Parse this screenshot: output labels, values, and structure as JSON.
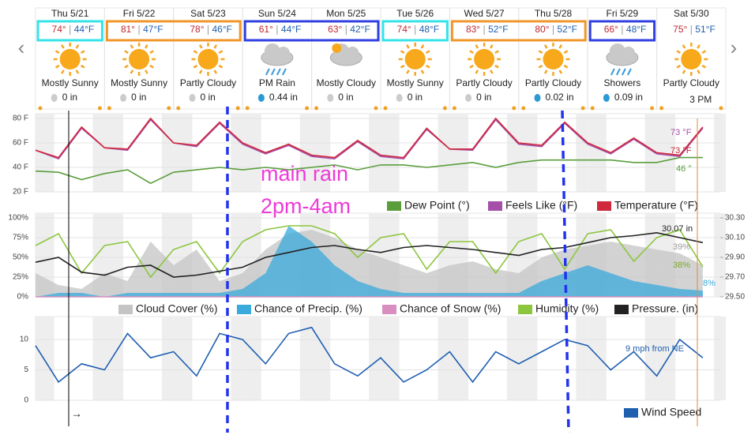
{
  "days": [
    {
      "date": "Thu 5/21",
      "hi": "74°",
      "lo": "44°F",
      "condition": "Mostly Sunny",
      "precip": "0 in",
      "box": "#33e3ea"
    },
    {
      "date": "Fri 5/22",
      "hi": "81°",
      "lo": "47°F",
      "condition": "Mostly Sunny",
      "precip": "0 in",
      "box": "#f0962a"
    },
    {
      "date": "Sat 5/23",
      "hi": "78°",
      "lo": "46°F",
      "condition": "Partly Cloudy",
      "precip": "0 in",
      "box": "#f0962a"
    },
    {
      "date": "Sun 5/24",
      "hi": "61°",
      "lo": "44°F",
      "condition": "PM Rain",
      "precip": "0.44 in",
      "box": "#2f3fe0"
    },
    {
      "date": "Mon 5/25",
      "hi": "63°",
      "lo": "42°F",
      "condition": "Mostly Cloudy",
      "precip": "0 in",
      "box": "#2f3fe0"
    },
    {
      "date": "Tue 5/26",
      "hi": "74°",
      "lo": "48°F",
      "condition": "Mostly Sunny",
      "precip": "0 in",
      "box": "#33e3ea"
    },
    {
      "date": "Wed 5/27",
      "hi": "83°",
      "lo": "52°F",
      "condition": "Partly Cloudy",
      "precip": "0 in",
      "box": "#f0962a"
    },
    {
      "date": "Thu 5/28",
      "hi": "80°",
      "lo": "52°F",
      "condition": "Partly Cloudy",
      "precip": "0.02 in",
      "box": "#f0962a"
    },
    {
      "date": "Fri 5/29",
      "hi": "66°",
      "lo": "48°F",
      "condition": "Showers",
      "precip": "0.09 in",
      "box": "#2f3fe0"
    },
    {
      "date": "Sat 5/30",
      "hi": "75°",
      "lo": "51°F",
      "condition": "Partly Cloudy"
    }
  ],
  "current_time": "3 PM",
  "note": [
    "main rain",
    "2pm-4am"
  ],
  "arrow": "→",
  "chart_data": [
    {
      "type": "line",
      "ylim": [
        20,
        80
      ],
      "yticks": [
        {
          "value": 20,
          "label": "20 F"
        },
        {
          "value": 40,
          "label": "40 F"
        },
        {
          "value": 60,
          "label": "60 F"
        },
        {
          "value": 80,
          "label": "80 F"
        }
      ],
      "categories": [
        null,
        null,
        null,
        null,
        null,
        null,
        null,
        null,
        null,
        null,
        null,
        null,
        null,
        null,
        null,
        null,
        null,
        null,
        null,
        null,
        null,
        null,
        null,
        null,
        null,
        null,
        null,
        null,
        null,
        null
      ],
      "series": [
        {
          "name": "Dew Point (°)",
          "color": "#5a9e3c",
          "values": [
            37,
            36,
            30,
            35,
            38,
            27,
            36,
            38,
            40,
            38,
            40,
            38,
            40,
            42,
            38,
            42,
            42,
            40,
            42,
            44,
            40,
            44,
            46,
            46,
            46,
            46,
            44,
            44,
            48,
            48
          ]
        },
        {
          "name": "Feels Like (°F)",
          "color": "#a54fa8",
          "values": [
            54,
            47,
            72,
            56,
            54,
            79,
            60,
            57,
            76,
            59,
            51,
            58,
            49,
            47,
            61,
            49,
            47,
            71,
            55,
            54,
            79,
            59,
            57,
            76,
            59,
            51,
            63,
            51,
            49,
            72
          ]
        },
        {
          "name": "Temperature (°F)",
          "color": "#d0283c",
          "values": [
            54,
            48,
            73,
            56,
            55,
            80,
            60,
            58,
            77,
            60,
            52,
            59,
            50,
            48,
            62,
            50,
            48,
            72,
            55,
            55,
            80,
            60,
            58,
            77,
            60,
            52,
            64,
            52,
            50,
            73
          ]
        }
      ],
      "annotations": [
        "73 °F",
        "73 °F",
        "46 °"
      ]
    },
    {
      "type": "line",
      "ylim": [
        0,
        100
      ],
      "yticks": [
        {
          "value": 0,
          "label": "0%"
        },
        {
          "value": 25,
          "label": "25%"
        },
        {
          "value": 50,
          "label": "50%"
        },
        {
          "value": 75,
          "label": "75%"
        },
        {
          "value": 100,
          "label": "100%"
        }
      ],
      "y2lim": [
        29.5,
        30.3
      ],
      "y2ticks": [
        {
          "value": 29.5,
          "label": "29.50"
        },
        {
          "value": 29.7,
          "label": "29.70"
        },
        {
          "value": 29.9,
          "label": "29.90"
        },
        {
          "value": 30.1,
          "label": "30.10"
        },
        {
          "value": 30.3,
          "label": "30.30"
        }
      ],
      "categories": [
        null,
        null,
        null,
        null,
        null,
        null,
        null,
        null,
        null,
        null,
        null,
        null,
        null,
        null,
        null,
        null,
        null,
        null,
        null,
        null,
        null,
        null,
        null,
        null,
        null,
        null,
        null,
        null,
        null,
        null
      ],
      "series": [
        {
          "name": "Cloud Cover (%)",
          "color": "#c4c4c4",
          "area": true,
          "values": [
            30,
            15,
            10,
            30,
            20,
            70,
            40,
            60,
            20,
            30,
            60,
            80,
            85,
            75,
            60,
            50,
            40,
            30,
            40,
            45,
            35,
            30,
            50,
            60,
            65,
            70,
            65,
            60,
            55,
            40
          ]
        },
        {
          "name": "Chance of Precip. (%)",
          "color": "#3aa9dc",
          "area": true,
          "values": [
            0,
            5,
            5,
            0,
            5,
            5,
            5,
            5,
            5,
            10,
            30,
            90,
            70,
            40,
            20,
            10,
            5,
            5,
            5,
            5,
            5,
            5,
            20,
            30,
            40,
            30,
            20,
            15,
            10,
            8
          ]
        },
        {
          "name": "Chance of Snow (%)",
          "color": "#d88fc0",
          "values": [
            0,
            0,
            0,
            0,
            0,
            0,
            0,
            0,
            0,
            0,
            0,
            0,
            0,
            0,
            0,
            0,
            0,
            0,
            0,
            0,
            0,
            0,
            0,
            0,
            0,
            0,
            0,
            0,
            0,
            0
          ]
        },
        {
          "name": "Humidity (%)",
          "color": "#8cc63f",
          "values": [
            65,
            80,
            30,
            65,
            70,
            25,
            60,
            70,
            30,
            70,
            85,
            90,
            90,
            80,
            50,
            75,
            80,
            35,
            70,
            70,
            30,
            70,
            80,
            35,
            80,
            85,
            45,
            75,
            85,
            38
          ]
        },
        {
          "name": "Pressure. (in)",
          "color": "#222222",
          "axis": "y2",
          "values": [
            29.85,
            29.9,
            29.75,
            29.72,
            29.8,
            29.82,
            29.7,
            29.72,
            29.76,
            29.8,
            29.9,
            29.95,
            30,
            30.02,
            29.98,
            29.95,
            30,
            30.02,
            30,
            29.98,
            29.95,
            29.92,
            29.98,
            30,
            30.05,
            30.1,
            30.12,
            30.15,
            30.1,
            30.05
          ]
        }
      ],
      "annotations": [
        "30.07 in",
        "39%",
        "38%",
        "8%"
      ]
    },
    {
      "type": "line",
      "ylim": [
        0,
        13
      ],
      "yticks": [
        0,
        5,
        10
      ],
      "categories": [
        null,
        null,
        null,
        null,
        null,
        null,
        null,
        null,
        null,
        null,
        null,
        null,
        null,
        null,
        null,
        null,
        null,
        null,
        null,
        null,
        null,
        null,
        null,
        null,
        null,
        null,
        null,
        null,
        null,
        null
      ],
      "series": [
        {
          "name": "Wind Speed",
          "color": "#1f5fb0",
          "values": [
            9,
            3,
            6,
            5,
            11,
            7,
            8,
            4,
            11,
            10,
            6,
            11,
            12,
            6,
            4,
            7,
            3,
            5,
            8,
            3,
            8,
            6,
            8,
            10,
            9,
            5,
            8,
            4,
            10,
            7
          ]
        }
      ],
      "annotations": [
        "9 mph from NE"
      ]
    }
  ]
}
